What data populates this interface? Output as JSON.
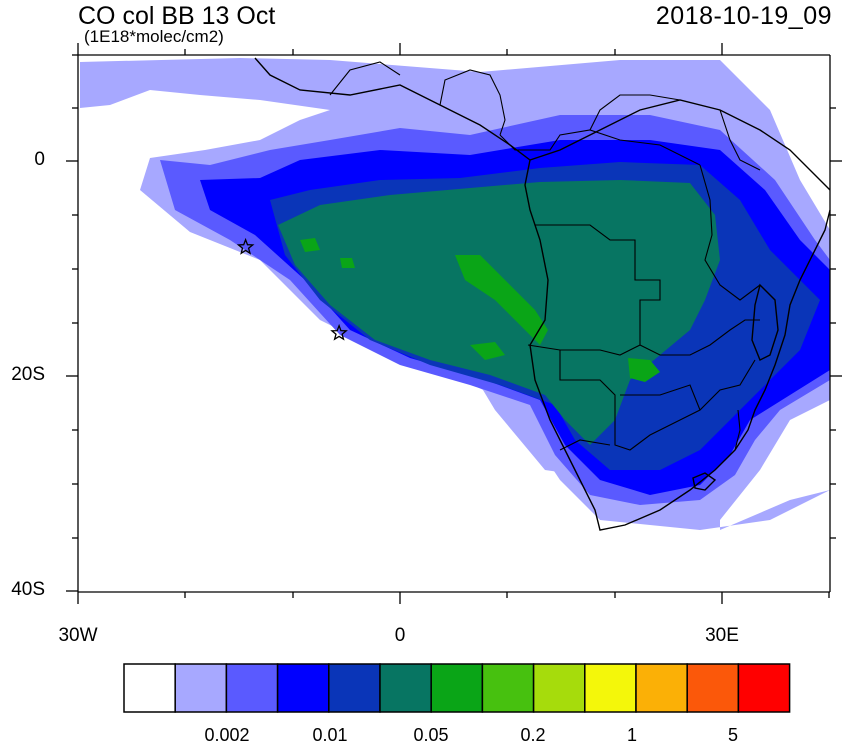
{
  "header": {
    "title": "CO col BB 13 Oct",
    "units": "(1E18*molec/cm2)",
    "datetime": "2018-10-19_09"
  },
  "map": {
    "y_ticks": [
      "0",
      "20S",
      "40S"
    ],
    "x_ticks": [
      "30W",
      "0",
      "30E"
    ],
    "lon_range": [
      -30,
      40
    ],
    "lat_range": [
      -40,
      10
    ],
    "markers": [
      {
        "name": "star-marker",
        "lon": -14.4,
        "lat": -7.9
      },
      {
        "name": "star-marker",
        "lon": -5.7,
        "lat": -15.9
      }
    ]
  },
  "colorbar": {
    "colors": [
      "#ffffff",
      "#a7a8ff",
      "#5a5aff",
      "#0000ff",
      "#0a35b8",
      "#077562",
      "#0aa517",
      "#47c10f",
      "#a6dc0c",
      "#f4f70a",
      "#fbb006",
      "#fb580a",
      "#ff0000"
    ],
    "labels": [
      "0.002",
      "0.01",
      "0.05",
      "0.2",
      "1",
      "5"
    ]
  }
}
